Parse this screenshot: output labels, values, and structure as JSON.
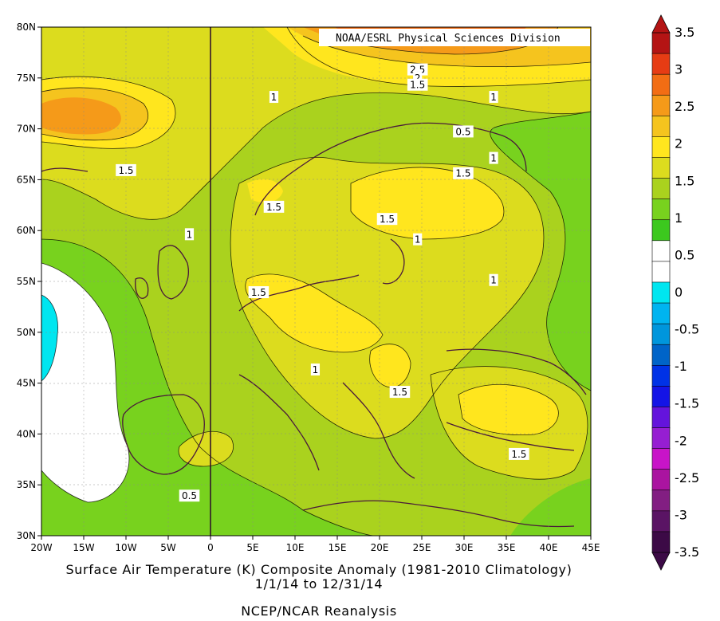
{
  "credit": "NOAA/ESRL Physical Sciences Division",
  "caption": {
    "line1": "Surface Air Temperature (K) Composite Anomaly (1981-2010 Climatology)",
    "line2": "1/1/14  to 12/31/14",
    "line3": "NCEP/NCAR Reanalysis"
  },
  "axes": {
    "lon_ticks": [
      "20W",
      "15W",
      "10W",
      "5W",
      "0",
      "5E",
      "10E",
      "15E",
      "20E",
      "25E",
      "30E",
      "35E",
      "40E",
      "45E"
    ],
    "lat_ticks": [
      "80N",
      "75N",
      "70N",
      "65N",
      "60N",
      "55N",
      "50N",
      "45N",
      "40N",
      "35N",
      "30N"
    ],
    "lon_range": [
      -20,
      45
    ],
    "lat_range": [
      30,
      80
    ]
  },
  "colorbar": {
    "labels": [
      "3.5",
      "3",
      "2.5",
      "2",
      "1.5",
      "1",
      "0.5",
      "0",
      "-0.5",
      "-1",
      "-1.5",
      "-2",
      "-2.5",
      "-3",
      "-3.5"
    ],
    "colors": [
      "#b41414",
      "#e63c14",
      "#f26d14",
      "#f59a19",
      "#f5c41e",
      "#ffe61e",
      "#dcdc1e",
      "#aad21e",
      "#78d21e",
      "#3cc81e",
      "#ffffff",
      "#ffffff",
      "#00e6f0",
      "#00b4f0",
      "#0096dc",
      "#0064c8",
      "#0032e6",
      "#1414e6",
      "#6414dc",
      "#961ed2",
      "#c814c8",
      "#aa14a0",
      "#821e82",
      "#5a1464",
      "#3c0a46"
    ]
  },
  "contour_labels": [
    {
      "text": "2.5",
      "lon": 24.5,
      "lat": 75.8
    },
    {
      "text": "2",
      "lon": 24.5,
      "lat": 75.0
    },
    {
      "text": "1.5",
      "lon": 24.5,
      "lat": 74.3
    },
    {
      "text": "1",
      "lon": 7.5,
      "lat": 73.1
    },
    {
      "text": "1",
      "lon": 33.5,
      "lat": 73.1
    },
    {
      "text": "0.5",
      "lon": 29.9,
      "lat": 69.7
    },
    {
      "text": "1",
      "lon": 33.5,
      "lat": 67.1
    },
    {
      "text": "1.5",
      "lon": -10.0,
      "lat": 65.9
    },
    {
      "text": "1.5",
      "lon": 29.9,
      "lat": 65.6
    },
    {
      "text": "1.5",
      "lon": 7.5,
      "lat": 62.3
    },
    {
      "text": "1.5",
      "lon": 20.9,
      "lat": 61.1
    },
    {
      "text": "1",
      "lon": -2.5,
      "lat": 59.6
    },
    {
      "text": "1",
      "lon": 24.5,
      "lat": 59.1
    },
    {
      "text": "1",
      "lon": 33.5,
      "lat": 55.1
    },
    {
      "text": "1.5",
      "lon": 5.7,
      "lat": 53.9
    },
    {
      "text": "1",
      "lon": 12.4,
      "lat": 46.3
    },
    {
      "text": "1.5",
      "lon": 22.4,
      "lat": 44.1
    },
    {
      "text": "1.5",
      "lon": 36.5,
      "lat": 38.0
    },
    {
      "text": "0.5",
      "lon": -2.5,
      "lat": 33.9
    }
  ]
}
